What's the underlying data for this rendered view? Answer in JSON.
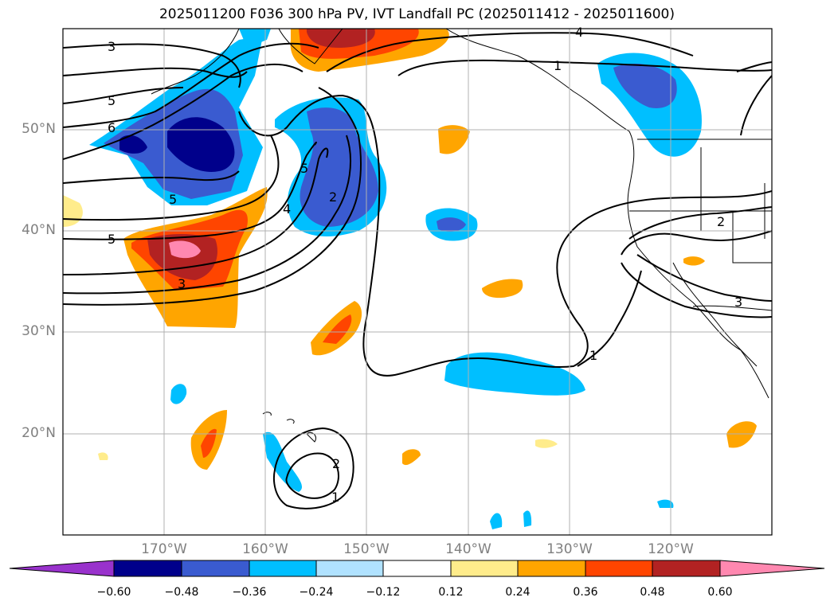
{
  "title": "2025011200 F036 300 hPa PV, IVT Landfall PC (2025011412 - 2025011600)",
  "map": {
    "lon_range": [
      -180,
      -110
    ],
    "lat_range": [
      10,
      60
    ],
    "lat_labels": [
      "50°N",
      "40°N",
      "30°N",
      "20°N"
    ],
    "lat_values": [
      50,
      40,
      30,
      20
    ],
    "lon_labels": [
      "170°W",
      "160°W",
      "150°W",
      "140°W",
      "130°W",
      "120°W"
    ],
    "lon_values": [
      -170,
      -160,
      -150,
      -140,
      -130,
      -120
    ],
    "gridlines": true
  },
  "contour_labels": [
    "3",
    "5",
    "6",
    "5",
    "5",
    "3",
    "5",
    "4",
    "2",
    "4",
    "1",
    "2",
    "3",
    "1",
    "2",
    "1"
  ],
  "colorbar": {
    "ticks": [
      "−0.60",
      "−0.48",
      "−0.36",
      "−0.24",
      "−0.12",
      "0.12",
      "0.24",
      "0.36",
      "0.48",
      "0.60"
    ],
    "colors": [
      "#9932cc",
      "#00008b",
      "#3a5bd0",
      "#00bfff",
      "#b0e2ff",
      "#ffffff",
      "#ffec8b",
      "#ffa500",
      "#ff4500",
      "#b22222",
      "#ff88b0"
    ]
  }
}
